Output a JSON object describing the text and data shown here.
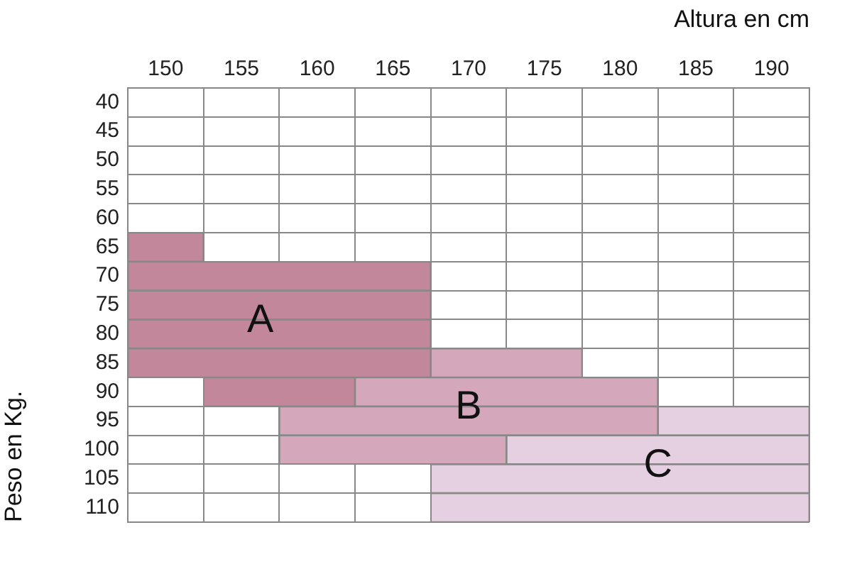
{
  "chart_data": {
    "type": "bar",
    "orientation": "horizontal",
    "xlabel": "Altura en cm",
    "ylabel": "Peso en Kg.",
    "categories": [
      "40",
      "45",
      "50",
      "55",
      "60",
      "65",
      "70",
      "75",
      "80",
      "85",
      "90",
      "95",
      "100",
      "105",
      "110"
    ],
    "xlim": [
      147.5,
      192.5
    ],
    "xticks": [
      {
        "value": 147.5,
        "label": null
      },
      150,
      {
        "value": 152.5,
        "label": null
      },
      155,
      {
        "value": 157.5,
        "label": null
      },
      160,
      {
        "value": 162.5,
        "label": null
      },
      165,
      {
        "value": 167.5,
        "label": null
      },
      170,
      {
        "value": 172.5,
        "label": null
      },
      175,
      {
        "value": 177.5,
        "label": null
      },
      180,
      {
        "value": 182.5,
        "label": null
      },
      185,
      {
        "value": 187.5,
        "label": null
      },
      190,
      {
        "value": 192.5,
        "label": null
      }
    ],
    "series": [
      {
        "name": "A",
        "color": "#c3879b",
        "base": [
          null,
          null,
          null,
          null,
          null,
          147.5,
          147.5,
          147.5,
          147.5,
          147.5,
          152.5,
          null,
          null,
          null,
          null
        ],
        "values": [
          null,
          null,
          null,
          null,
          null,
          5,
          20,
          20,
          20,
          20,
          10,
          null,
          null,
          null,
          null
        ]
      },
      {
        "name": "B",
        "color": "#d4a7bb",
        "base": [
          null,
          null,
          null,
          null,
          null,
          null,
          null,
          null,
          null,
          167.5,
          162.5,
          157.5,
          157.5,
          null,
          null
        ],
        "values": [
          null,
          null,
          null,
          null,
          null,
          null,
          null,
          null,
          null,
          10,
          20,
          25,
          15,
          null,
          null
        ]
      },
      {
        "name": "C",
        "color": "#e4d0e0",
        "base": [
          null,
          null,
          null,
          null,
          null,
          null,
          null,
          null,
          null,
          null,
          null,
          182.5,
          172.5,
          167.5,
          167.5
        ],
        "values": [
          null,
          null,
          null,
          null,
          null,
          null,
          null,
          null,
          null,
          null,
          null,
          10,
          20,
          25,
          25
        ]
      }
    ],
    "grid": true
  }
}
